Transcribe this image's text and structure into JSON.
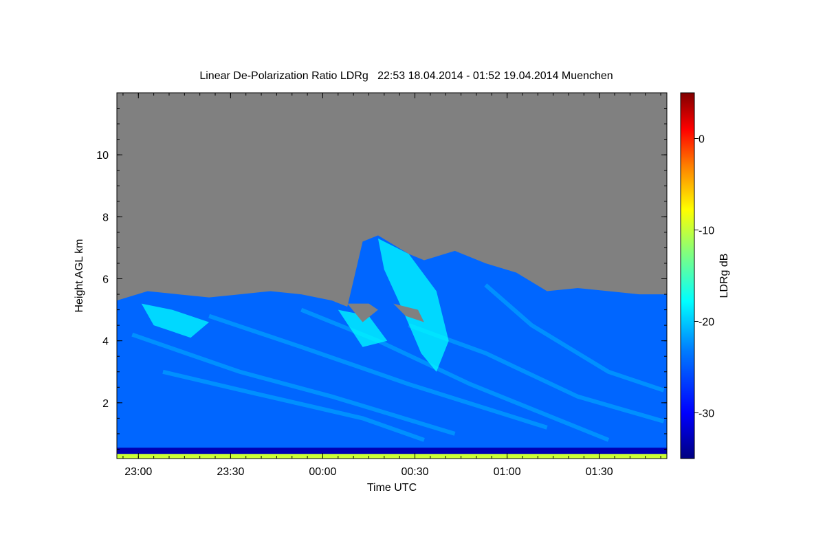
{
  "chart_data": {
    "type": "heatmap",
    "title": "Linear De-Polarization Ratio LDRg   22:53 18.04.2014 - 01:52 19.04.2014 Muenchen",
    "xlabel": "Time UTC",
    "ylabel": "Height AGL km",
    "x_ticks": [
      "23:00",
      "23:30",
      "00:00",
      "00:30",
      "01:00",
      "01:30"
    ],
    "x_tick_minutes": [
      7,
      37,
      67,
      97,
      127,
      157
    ],
    "xlim_minutes": [
      0,
      179
    ],
    "y_ticks": [
      2,
      4,
      6,
      8,
      10
    ],
    "ylim_km": [
      0.2,
      12
    ],
    "colorbar": {
      "label": "LDRg dB",
      "ticks": [
        0,
        -10,
        -20,
        -30
      ],
      "range": [
        -35,
        5
      ],
      "colormap": [
        "#000080",
        "#0000ff",
        "#0080ff",
        "#00ffff",
        "#80ff80",
        "#ffff00",
        "#ff8000",
        "#ff0000",
        "#800000"
      ]
    },
    "no_data_color": "#808080",
    "cloud_top_profile_km": [
      {
        "t": 0,
        "h": 5.3
      },
      {
        "t": 10,
        "h": 5.6
      },
      {
        "t": 20,
        "h": 5.5
      },
      {
        "t": 30,
        "h": 5.4
      },
      {
        "t": 40,
        "h": 5.5
      },
      {
        "t": 50,
        "h": 5.6
      },
      {
        "t": 60,
        "h": 5.5
      },
      {
        "t": 70,
        "h": 5.3
      },
      {
        "t": 75,
        "h": 5.1
      },
      {
        "t": 80,
        "h": 7.2
      },
      {
        "t": 85,
        "h": 7.4
      },
      {
        "t": 90,
        "h": 7.1
      },
      {
        "t": 95,
        "h": 6.8
      },
      {
        "t": 100,
        "h": 6.6
      },
      {
        "t": 110,
        "h": 6.9
      },
      {
        "t": 120,
        "h": 6.5
      },
      {
        "t": 130,
        "h": 6.2
      },
      {
        "t": 140,
        "h": 5.6
      },
      {
        "t": 150,
        "h": 5.7
      },
      {
        "t": 160,
        "h": 5.6
      },
      {
        "t": 170,
        "h": 5.5
      },
      {
        "t": 179,
        "h": 5.5
      }
    ],
    "typical_cloud_ldr_db": -26,
    "plume_ldr_db": -20
  }
}
